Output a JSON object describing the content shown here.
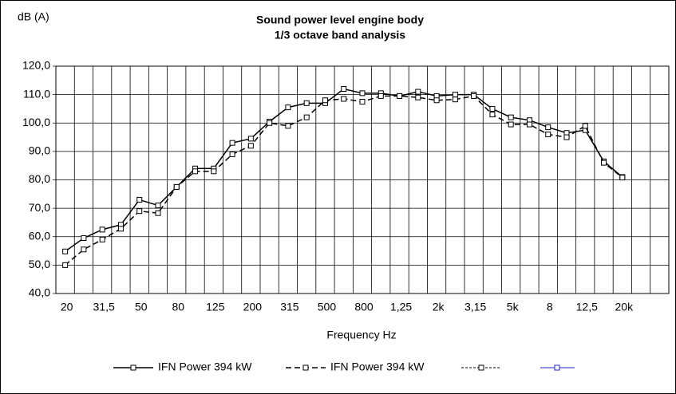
{
  "chart_data": {
    "type": "line",
    "title": "Sound power level engine body",
    "subtitle": "1/3 octave band analysis",
    "y_label": "dB (A)",
    "x_label": "Frequency Hz",
    "categories": [
      "20",
      null,
      "31,5",
      null,
      "50",
      null,
      "80",
      null,
      "125",
      null,
      "200",
      null,
      "315",
      null,
      "500",
      null,
      "800",
      null,
      "1,25",
      null,
      "2k",
      null,
      "3,15",
      null,
      "5k",
      null,
      "8",
      null,
      "12,5",
      null,
      "20k",
      null,
      null
    ],
    "series": [
      {
        "name": "IFN Power 394 kW",
        "color": "#000000",
        "dash": "solid",
        "values": [
          54.8,
          59.5,
          62.5,
          64.2,
          73,
          71,
          77.5,
          84,
          84,
          93,
          94.5,
          100.5,
          105.5,
          107,
          107,
          112,
          110.5,
          110.5,
          109.5,
          111,
          109.5,
          110,
          110,
          105,
          102,
          101,
          98.5,
          96.5,
          97.5,
          86.5,
          81,
          null,
          null
        ]
      },
      {
        "name": "IFN Power 394 kW",
        "color": "#000000",
        "dash": "dashed",
        "values": [
          50,
          55.5,
          59,
          62.8,
          69,
          68.3,
          77.5,
          83,
          83,
          89,
          92,
          100,
          99,
          102,
          108,
          108.5,
          107.5,
          109.5,
          109.5,
          109,
          108,
          108.3,
          109.5,
          103,
          99.5,
          99.5,
          96,
          95,
          99,
          86,
          80.8,
          null,
          null
        ]
      }
    ],
    "ylim": [
      40,
      120
    ],
    "yticks": [
      {
        "value": 40,
        "label": "40,0"
      },
      {
        "value": 50,
        "label": "50,0"
      },
      {
        "value": 60,
        "label": "60,0"
      },
      {
        "value": 70,
        "label": "70,0"
      },
      {
        "value": 80,
        "label": "80,0"
      },
      {
        "value": 90,
        "label": "90,0"
      },
      {
        "value": 100,
        "label": "100,0"
      },
      {
        "value": 110,
        "label": "110,0"
      },
      {
        "value": 120,
        "label": "120,0"
      }
    ],
    "grid": true
  }
}
